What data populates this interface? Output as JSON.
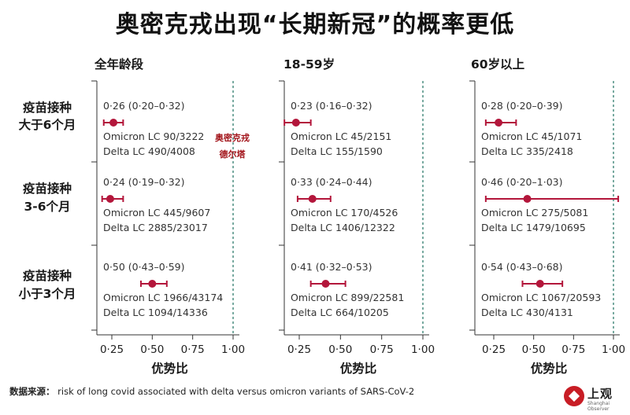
{
  "title": "奥密克戎出现“长期新冠”的概率更低",
  "source_label": "数据来源：",
  "source_text": "risk of long covid associated with delta versus omicron variants of SARS-CoV-2",
  "watermark": [
    "奥密克戎",
    "德尔塔"
  ],
  "logo": {
    "name": "上观",
    "sub": "Shanghai Observer"
  },
  "colors": {
    "point": "#b3163b",
    "reference_line": "#2f7d6d",
    "axis": "#333333"
  },
  "chart_data": [
    {
      "type": "scatter",
      "subtype": "forest_plot",
      "title": "全年龄段",
      "xlabel": "优势比",
      "xticks": [
        "0·25",
        "0·50",
        "0·75",
        "1·00"
      ],
      "xlim": [
        0.1,
        1.06
      ],
      "reference_line": 1.0,
      "rows": [
        {
          "group": "疫苗接种大于6个月",
          "or": 0.26,
          "ci": [
            0.2,
            0.32
          ],
          "ci_text": "0·26 (0·20–0·32)",
          "omicron": "Omicron LC 90/3222",
          "delta": "Delta LC 490/4008"
        },
        {
          "group": "疫苗接种3-6个月",
          "or": 0.24,
          "ci": [
            0.19,
            0.32
          ],
          "ci_text": "0·24 (0·19–0·32)",
          "omicron": "Omicron LC 445/9607",
          "delta": "Delta LC 2885/23017"
        },
        {
          "group": "疫苗接种小于3个月",
          "or": 0.5,
          "ci": [
            0.43,
            0.59
          ],
          "ci_text": "0·50 (0·43–0·59)",
          "omicron": "Omicron LC 1966/43174",
          "delta": "Delta LC 1094/14336"
        }
      ]
    },
    {
      "type": "scatter",
      "subtype": "forest_plot",
      "title": "18-59岁",
      "xlabel": "优势比",
      "xticks": [
        "0·25",
        "0·50",
        "0·75",
        "1·00"
      ],
      "xlim": [
        0.1,
        1.06
      ],
      "reference_line": 1.0,
      "rows": [
        {
          "group": "疫苗接种大于6个月",
          "or": 0.23,
          "ci": [
            0.16,
            0.32
          ],
          "ci_text": "0·23 (0·16–0·32)",
          "omicron": "Omicron LC 45/2151",
          "delta": "Delta LC 155/1590"
        },
        {
          "group": "疫苗接种3-6个月",
          "or": 0.33,
          "ci": [
            0.24,
            0.44
          ],
          "ci_text": "0·33 (0·24–0·44)",
          "omicron": "Omicron LC 170/4526",
          "delta": "Delta LC 1406/12322"
        },
        {
          "group": "疫苗接种小于3个月",
          "or": 0.41,
          "ci": [
            0.32,
            0.53
          ],
          "ci_text": "0·41 (0·32–0·53)",
          "omicron": "Omicron LC 899/22581",
          "delta": "Delta LC 664/10205"
        }
      ]
    },
    {
      "type": "scatter",
      "subtype": "forest_plot",
      "title": "60岁以上",
      "xlabel": "优势比",
      "xticks": [
        "0·25",
        "0·50",
        "0·75",
        "1·00"
      ],
      "xlim": [
        0.1,
        1.06
      ],
      "reference_line": 1.0,
      "rows": [
        {
          "group": "疫苗接种大于6个月",
          "or": 0.28,
          "ci": [
            0.2,
            0.39
          ],
          "ci_text": "0·28 (0·20–0·39)",
          "omicron": "Omicron LC 45/1071",
          "delta": "Delta LC 335/2418"
        },
        {
          "group": "疫苗接种3-6个月",
          "or": 0.46,
          "ci": [
            0.2,
            1.03
          ],
          "ci_text": "0·46 (0·20–1·03)",
          "omicron": "Omicron LC 275/5081",
          "delta": "Delta LC 1479/10695"
        },
        {
          "group": "疫苗接种小于3个月",
          "or": 0.54,
          "ci": [
            0.43,
            0.68
          ],
          "ci_text": "0·54 (0·43–0·68)",
          "omicron": "Omicron LC 1067/20593",
          "delta": "Delta LC 430/4131"
        }
      ]
    }
  ],
  "row_labels": [
    [
      "疫苗接种",
      "大于6个月"
    ],
    [
      "疫苗接种",
      "3-6个月"
    ],
    [
      "疫苗接种",
      "小于3个月"
    ]
  ]
}
